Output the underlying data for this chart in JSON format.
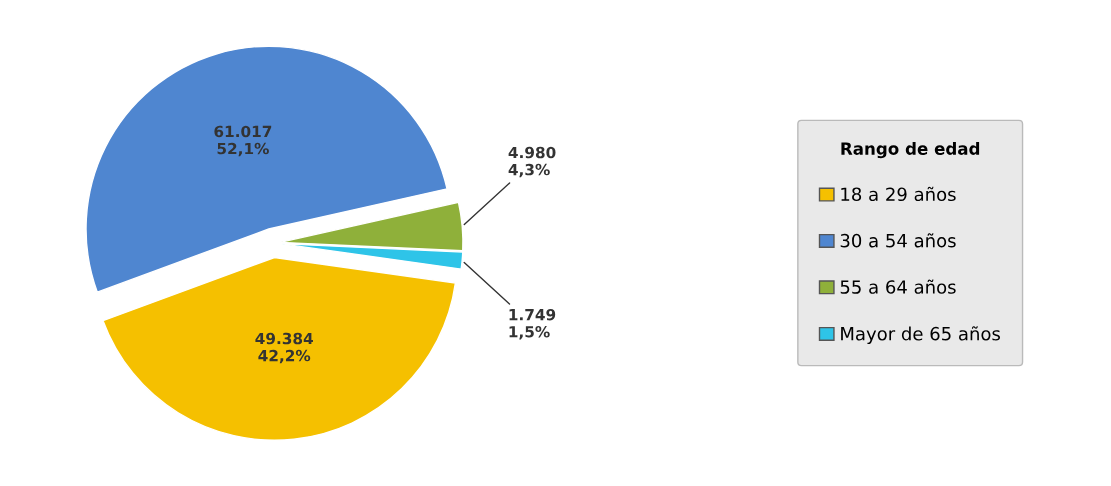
{
  "chart_data": {
    "type": "pie",
    "legend_title": "Rango de edad",
    "categories": [
      "18 a 29 años",
      "30 a 54 años",
      "55 a 64 años",
      "Mayor de 65 años"
    ],
    "values": [
      49384,
      61017,
      4980,
      1749
    ],
    "colors": [
      "#f5c000",
      "#4f86d0",
      "#8fb03a",
      "#2ec4e8"
    ],
    "value_labels": [
      "49.384\n42,2%",
      "61.017\n52,1%",
      "4.980\n4,3%",
      "1.749\n1,5%"
    ],
    "legend": "right"
  }
}
